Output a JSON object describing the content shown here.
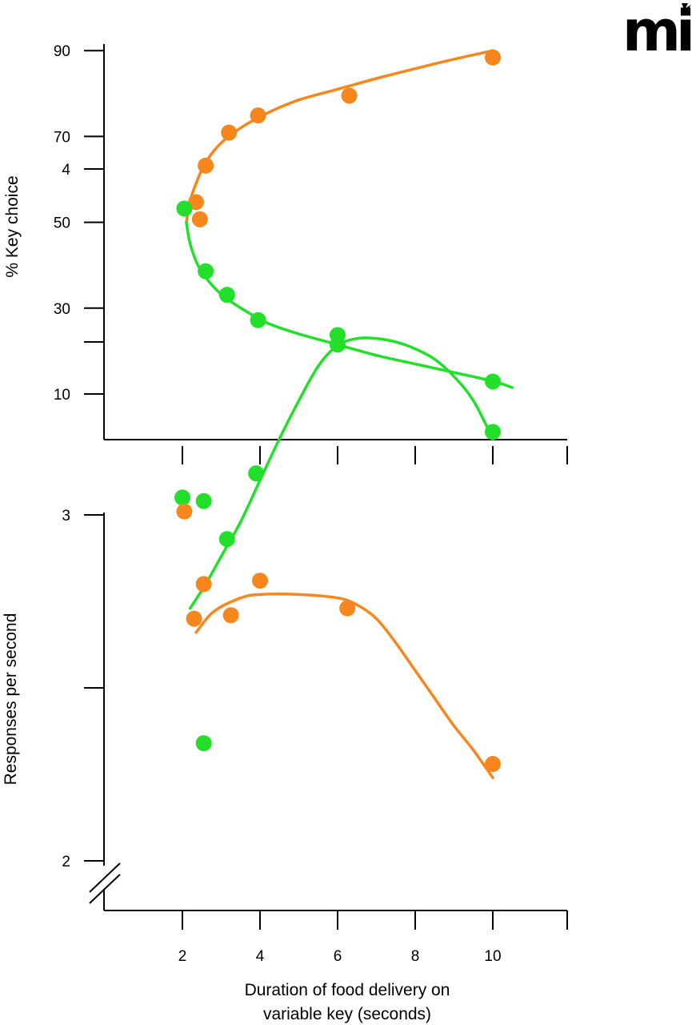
{
  "logo": {
    "text": "mi"
  },
  "colors": {
    "orange": "#f7871d",
    "green": "#22e02a",
    "axis": "#000000"
  },
  "xlabel_line1": "Duration of food delivery on",
  "xlabel_line2": "variable key (seconds)",
  "chart_data": [
    {
      "type": "scatter",
      "title": "",
      "ylabel": "% Key choice",
      "xlim": [
        0,
        11.5
      ],
      "ylim": [
        -2,
        96
      ],
      "xticks": [
        2,
        4,
        6,
        8,
        10
      ],
      "yticks": [
        90,
        70,
        50,
        30,
        10
      ],
      "ytick_labels": [
        "90",
        "70",
        "50",
        "30",
        "10"
      ],
      "series": [
        {
          "name": "orange",
          "color": "#f7871d",
          "x": [
            2.35,
            2.45,
            2.6,
            3.2,
            3.95,
            6.3,
            10
          ],
          "y": [
            54.7,
            50.7,
            63.2,
            70.9,
            74.9,
            79.5,
            88.4
          ],
          "fit_x": [
            2.1,
            2.2,
            2.35,
            2.6,
            3.0,
            3.5,
            4.2,
            5.0,
            6.0,
            7.0,
            8.0,
            9.0,
            10.0
          ],
          "fit_y": [
            50,
            55,
            59,
            64,
            68.5,
            72,
            75.5,
            78.5,
            81,
            83.5,
            85.8,
            88,
            90
          ]
        },
        {
          "name": "green",
          "color": "#22e02a",
          "x": [
            2.05,
            2.6,
            3.15,
            3.95,
            6.0,
            10
          ],
          "y": [
            53.2,
            38.6,
            33.1,
            27.2,
            21.5,
            12.9
          ],
          "fit_x": [
            2.1,
            2.2,
            2.4,
            2.7,
            3.1,
            3.6,
            4.2,
            5.0,
            6.0,
            7.0,
            8.0,
            9.0,
            10.0,
            10.5
          ],
          "fit_y": [
            50,
            45,
            40,
            36,
            32.5,
            29.5,
            26.5,
            24,
            21.5,
            19,
            17,
            15,
            13,
            11.5
          ]
        }
      ]
    },
    {
      "type": "scatter",
      "title": "",
      "ylabel": "Responses per second",
      "xlim": [
        0,
        11.5
      ],
      "ylim": [
        1.7,
        4
      ],
      "xticks": [
        2,
        4,
        6,
        8,
        10
      ],
      "xtick_labels": [
        "2",
        "4",
        "6",
        "8",
        "10"
      ],
      "yticks": [
        4,
        3.5,
        3,
        2.5,
        2
      ],
      "ytick_labels": [
        "4",
        "",
        "3",
        "",
        "2"
      ],
      "axis_break": true,
      "series": [
        {
          "name": "green",
          "color": "#22e02a",
          "x": [
            2.0,
            2.55,
            3.15,
            3.9,
            6.0,
            10,
            2.55
          ],
          "y": [
            3.05,
            3.04,
            2.93,
            3.12,
            3.52,
            3.24,
            2.34
          ],
          "fit_x": [
            2.2,
            2.6,
            3.0,
            3.5,
            4.0,
            4.5,
            5.0,
            5.5,
            6.0,
            6.5,
            7.0,
            7.5,
            8.0,
            8.5,
            9.0,
            9.5,
            10.0
          ],
          "fit_y": [
            2.73,
            2.8,
            2.88,
            2.98,
            3.1,
            3.22,
            3.33,
            3.43,
            3.49,
            3.51,
            3.51,
            3.5,
            3.48,
            3.45,
            3.4,
            3.33,
            3.22
          ]
        },
        {
          "name": "orange",
          "color": "#f7871d",
          "x": [
            2.05,
            2.3,
            2.55,
            3.25,
            4.0,
            6.25,
            10
          ],
          "y": [
            3.01,
            2.7,
            2.8,
            2.71,
            2.81,
            2.73,
            2.28
          ],
          "fit_x": [
            2.35,
            2.8,
            3.5,
            4.0,
            5.0,
            6.0,
            6.5,
            7.0,
            7.5,
            8.0,
            8.5,
            9.0,
            9.5,
            10.0
          ],
          "fit_y": [
            2.66,
            2.72,
            2.76,
            2.77,
            2.77,
            2.76,
            2.74,
            2.7,
            2.63,
            2.55,
            2.47,
            2.39,
            2.32,
            2.24
          ]
        }
      ]
    }
  ]
}
